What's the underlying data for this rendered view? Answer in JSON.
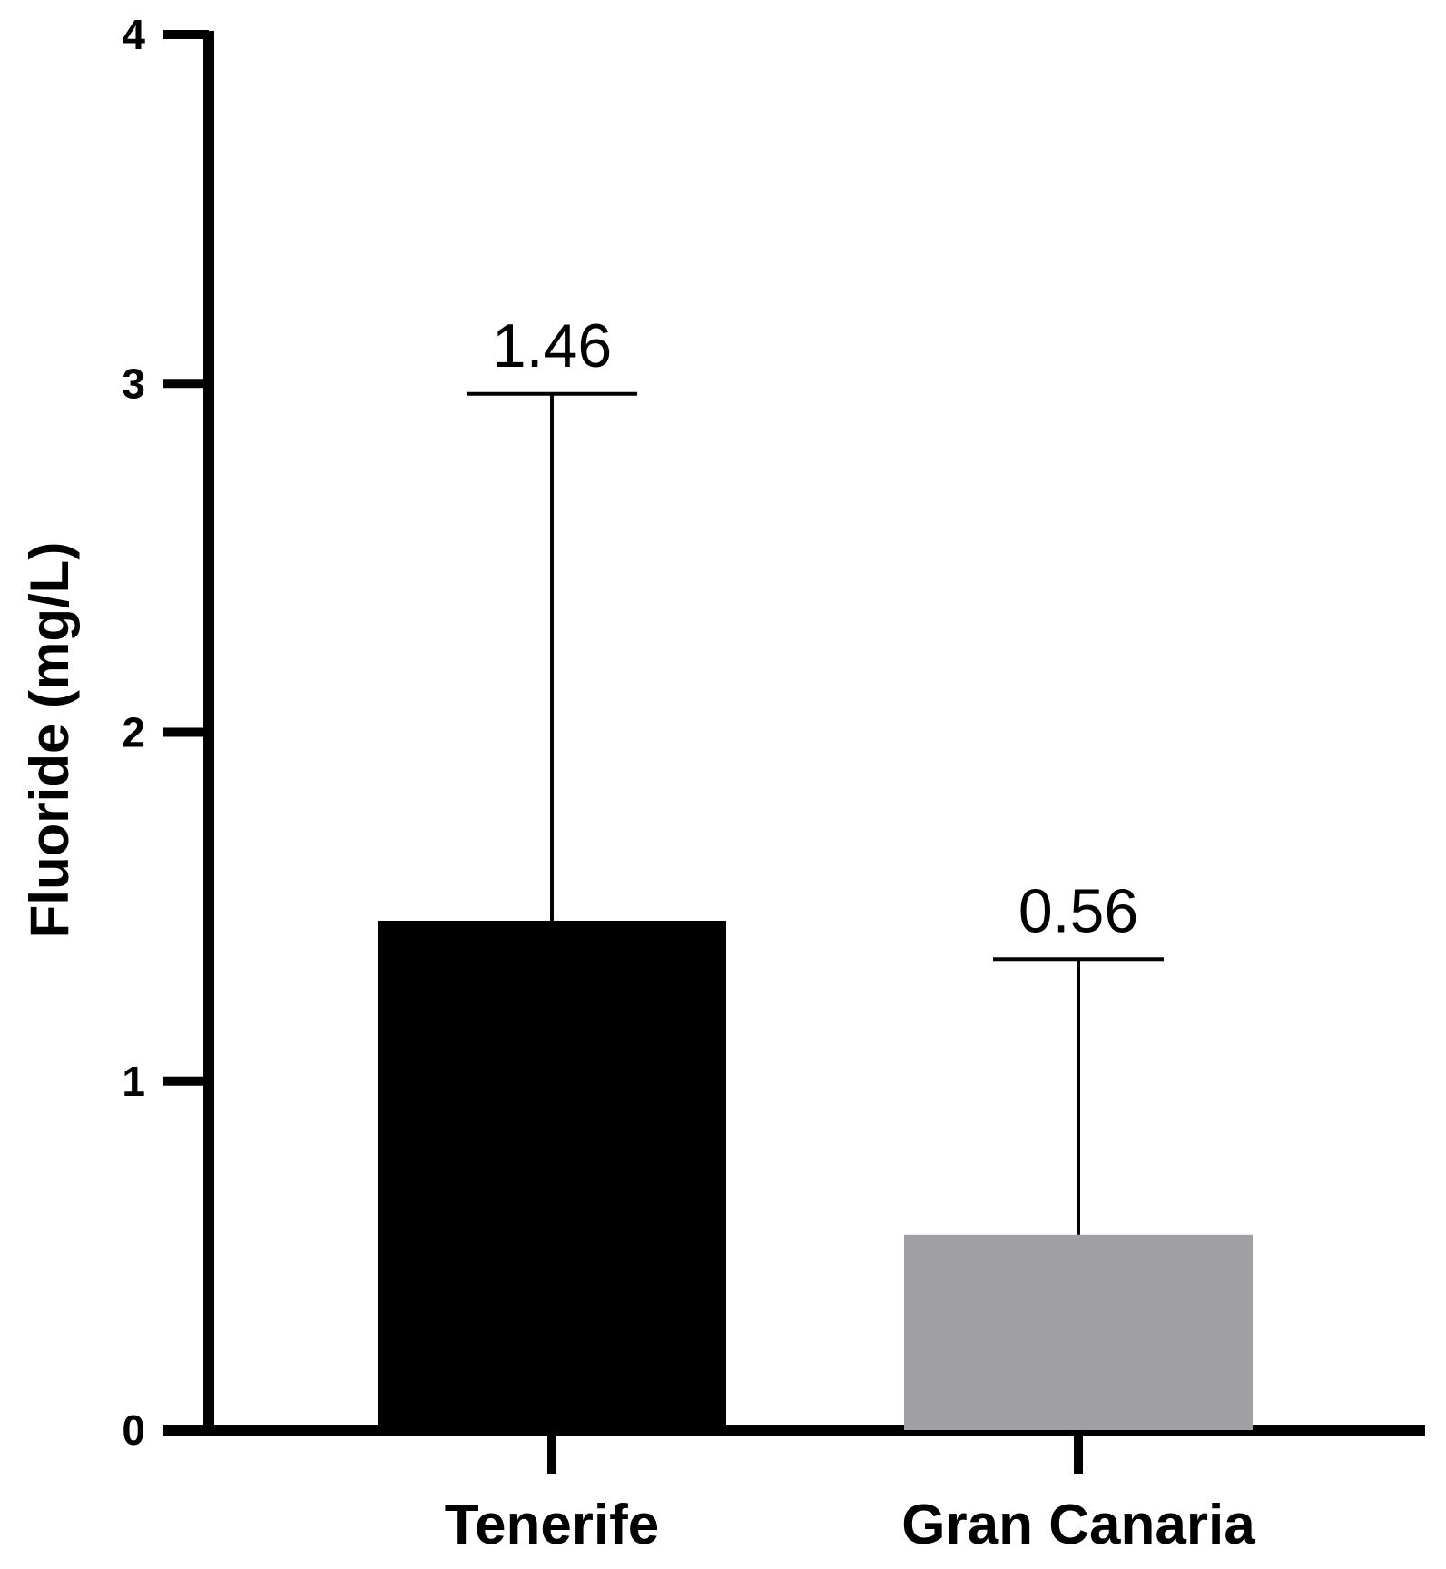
{
  "chart_data": {
    "type": "bar",
    "title": "",
    "xlabel": "",
    "ylabel": "Fluoride (mg/L)",
    "ylim": [
      0,
      4
    ],
    "yticks": [
      0,
      1,
      2,
      3,
      4
    ],
    "categories": [
      "Tenerife",
      "Gran Canaria"
    ],
    "values": [
      1.46,
      0.56
    ],
    "error_upper": [
      2.97,
      1.35
    ],
    "data_labels": [
      "1.46",
      "0.56"
    ],
    "colors": [
      "#000000",
      "#a0a0a4"
    ],
    "grid": false,
    "legend": "none"
  }
}
